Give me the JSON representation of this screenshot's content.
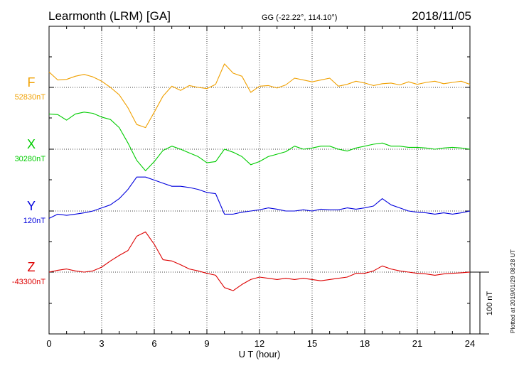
{
  "header": {
    "station": "Learmonth (LRM)  [GA]",
    "coords": "GG (-22.22°, 114.10°)",
    "date": "2018/11/05"
  },
  "footer": {
    "xlabel": "U T (hour)",
    "plotted": "Plotted at 2019/01/29 08:28 UT",
    "scale_label": "100 nT"
  },
  "chart_data": {
    "type": "line",
    "xlabel": "U T (hour)",
    "xlim": [
      0,
      24
    ],
    "xticks": [
      "0",
      "3",
      "6",
      "9",
      "12",
      "15",
      "18",
      "21",
      "24"
    ],
    "grid": true,
    "scale_bar_nT": 100,
    "x": [
      0,
      0.5,
      1,
      1.5,
      2,
      2.5,
      3,
      3.5,
      4,
      4.5,
      5,
      5.5,
      6,
      6.5,
      7,
      7.5,
      8,
      8.5,
      9,
      9.5,
      10,
      10.5,
      11,
      11.5,
      12,
      12.5,
      13,
      13.5,
      14,
      14.5,
      15,
      15.5,
      16,
      16.5,
      17,
      17.5,
      18,
      18.5,
      19,
      19.5,
      20,
      20.5,
      21,
      21.5,
      22,
      22.5,
      23,
      23.5,
      24
    ],
    "series": [
      {
        "name": "F",
        "baseline": "52830nT",
        "color": "#f0a000",
        "values": [
          25,
          12,
          13,
          18,
          21,
          17,
          10,
          0,
          -12,
          -33,
          -60,
          -65,
          -40,
          -14,
          2,
          -5,
          3,
          0,
          -2,
          5,
          38,
          23,
          18,
          -8,
          2,
          3,
          -1,
          4,
          15,
          12,
          9,
          12,
          15,
          2,
          5,
          10,
          7,
          3,
          6,
          7,
          4,
          9,
          5,
          8,
          10,
          6,
          8,
          10,
          5
        ]
      },
      {
        "name": "X",
        "baseline": "30280nT",
        "color": "#00cc00",
        "values": [
          57,
          56,
          47,
          57,
          60,
          58,
          52,
          48,
          35,
          10,
          -18,
          -35,
          -20,
          -2,
          5,
          0,
          -6,
          -12,
          -22,
          -20,
          0,
          -5,
          -12,
          -25,
          -20,
          -12,
          -8,
          -4,
          5,
          0,
          2,
          5,
          5,
          0,
          -3,
          2,
          5,
          8,
          10,
          5,
          5,
          3,
          3,
          2,
          0,
          2,
          3,
          2,
          0
        ]
      },
      {
        "name": "Y",
        "baseline": "120nT",
        "color": "#0000dd",
        "values": [
          -12,
          -5,
          -7,
          -5,
          -3,
          0,
          5,
          10,
          20,
          35,
          55,
          55,
          50,
          45,
          40,
          40,
          38,
          35,
          30,
          28,
          -5,
          -5,
          -2,
          0,
          2,
          5,
          3,
          0,
          0,
          2,
          0,
          3,
          2,
          2,
          5,
          3,
          5,
          8,
          20,
          10,
          5,
          0,
          -2,
          -3,
          -5,
          -3,
          -5,
          -3,
          0
        ]
      },
      {
        "name": "Z",
        "baseline": "-43300nT",
        "color": "#dd0000",
        "values": [
          0,
          3,
          5,
          2,
          0,
          2,
          8,
          18,
          27,
          35,
          58,
          65,
          45,
          20,
          18,
          12,
          5,
          2,
          -2,
          -5,
          -25,
          -30,
          -20,
          -12,
          -8,
          -10,
          -12,
          -10,
          -12,
          -10,
          -12,
          -14,
          -12,
          -10,
          -8,
          -2,
          -2,
          2,
          10,
          5,
          2,
          0,
          -2,
          -3,
          -5,
          -3,
          -2,
          -1,
          0
        ]
      }
    ]
  }
}
